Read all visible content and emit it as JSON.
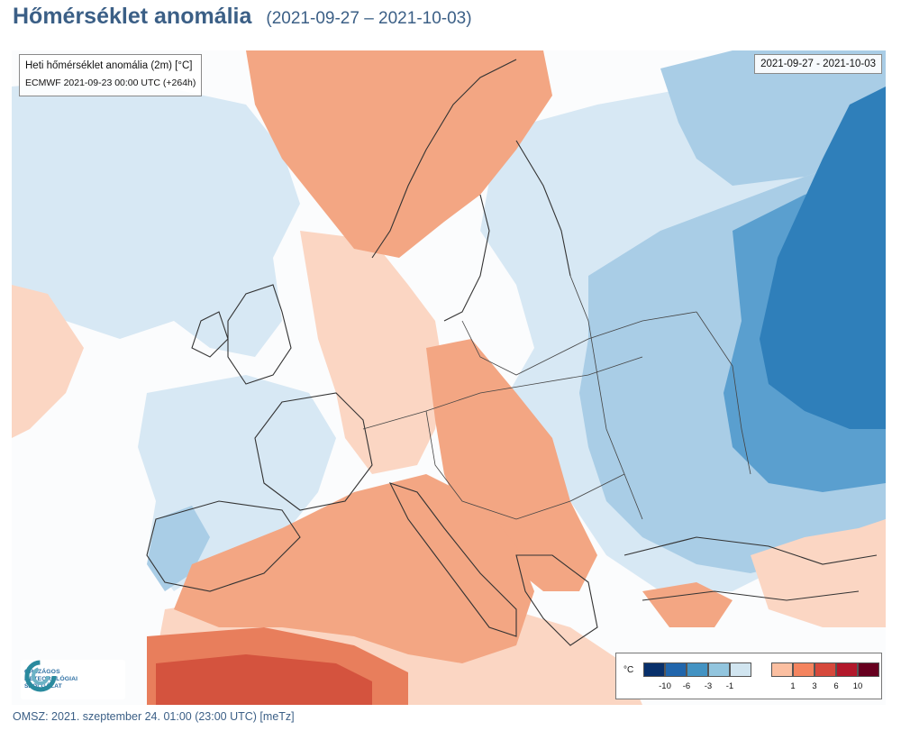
{
  "header": {
    "title": "Hőmérséklet anomália",
    "date_range": "(2021-09-27 – 2021-10-03)"
  },
  "map": {
    "info_line1": "Heti hőmérséklet anomália (2m) [°C]",
    "info_line2": "ECMWF 2021-09-23 00:00 UTC (+264h)",
    "period": "2021-09-27 - 2021-10-03",
    "colors": {
      "cold_strong": "#2f7fba",
      "cold_mid": "#5a9fcf",
      "cold_light": "#a9cde6",
      "cold_faint": "#d7e8f4",
      "neutral": "#ffffff",
      "warm_faint": "#fbd6c3",
      "warm_light": "#f3a683",
      "warm_mid": "#e87e5c",
      "warm_strong": "#d4533e"
    }
  },
  "legend": {
    "unit": "°C",
    "cold_ticks": [
      "-10",
      "-6",
      "-3",
      "-1"
    ],
    "warm_ticks": [
      "1",
      "3",
      "6",
      "10"
    ],
    "cold_colors": [
      "#08306b",
      "#2166ac",
      "#4393c3",
      "#92c5de",
      "#d1e5f0"
    ],
    "warm_colors": [
      "#fbbfa1",
      "#f4845f",
      "#d6493c",
      "#b2182b",
      "#67001f"
    ]
  },
  "logo": {
    "line1": "ORSZÁGOS",
    "line2": "METEOROLÓGIAI",
    "line3": "SZOLGÁLAT"
  },
  "footer": {
    "text": "OMSZ: 2021. szeptember 24. 01:00 (23:00  UTC)  [meTz]"
  }
}
